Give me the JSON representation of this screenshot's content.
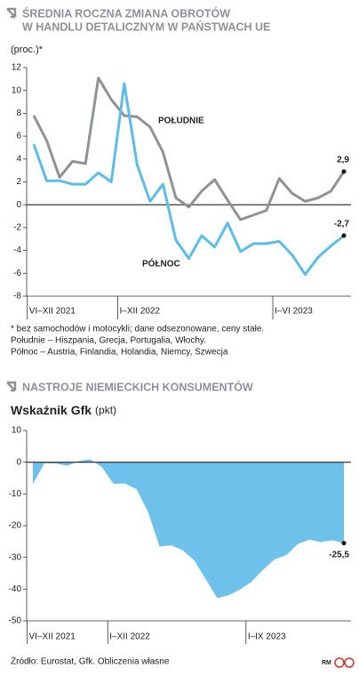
{
  "chart_data": [
    {
      "type": "line",
      "title": [
        "ŚREDNIA ROCZNA ZMIANA OBROTÓW",
        "W HANDLU DETALICZNYM W PAŃSTWACH UE"
      ],
      "subtitle": "(proc.)*",
      "categories": [
        "VI–XII 2021",
        null,
        null,
        null,
        null,
        null,
        null,
        "I–XII 2022",
        null,
        null,
        null,
        null,
        null,
        null,
        null,
        null,
        null,
        null,
        null,
        "I–VI 2023",
        null,
        null,
        null,
        null,
        null
      ],
      "series": [
        {
          "name": "POŁUDNIE",
          "color": "#8f9296",
          "values": [
            7.8,
            5.6,
            2.4,
            3.8,
            3.6,
            11.1,
            9.2,
            7.8,
            7.7,
            6.8,
            4.6,
            0.6,
            -0.2,
            1.2,
            2.2,
            0.4,
            -1.3,
            -0.9,
            -0.5,
            2.3,
            1.0,
            0.3,
            0.6,
            1.2,
            2.9
          ],
          "value_labels": [
            null,
            null,
            null,
            null,
            null,
            null,
            null,
            null,
            null,
            null,
            null,
            null,
            null,
            null,
            null,
            null,
            null,
            null,
            null,
            null,
            null,
            null,
            null,
            null,
            "2,9"
          ]
        },
        {
          "name": "PÓŁNOC",
          "color": "#5bbde8",
          "values": [
            5.3,
            2.1,
            2.1,
            1.8,
            1.8,
            2.8,
            2.0,
            10.6,
            3.5,
            0.3,
            1.8,
            -3.1,
            -4.7,
            -2.7,
            -3.7,
            -1.6,
            -4.1,
            -3.4,
            -3.4,
            -3.2,
            -4.4,
            -6.1,
            -4.6,
            -3.6,
            -2.7
          ],
          "value_labels": [
            null,
            null,
            null,
            null,
            null,
            null,
            null,
            null,
            null,
            null,
            null,
            null,
            null,
            null,
            null,
            null,
            null,
            null,
            null,
            null,
            null,
            null,
            null,
            null,
            "-2,7"
          ]
        }
      ],
      "ylim": [
        -8,
        12
      ],
      "yticks": [
        12,
        10,
        8,
        6,
        4,
        2,
        0,
        -2,
        -4,
        -6,
        -8
      ],
      "grid": false,
      "notes": [
        "* bez samochodów i motocykli; dane odsezonowane, ceny stałe.",
        "Południe – Hiszpania, Grecja, Portugalia, Włochy.",
        "Północ – Austria, Finlandia, Holandia, Niemcy, Szwecja"
      ]
    },
    {
      "type": "area",
      "title": [
        "NASTROJE NIEMIECKICH KONSUMENTÓW"
      ],
      "subtitle": "Wskaźnik Gfk",
      "unit": "(pkt)",
      "categories": [
        "VI–XII 2021",
        null,
        null,
        null,
        null,
        null,
        null,
        "I–XII 2022",
        null,
        null,
        null,
        null,
        null,
        null,
        null,
        null,
        null,
        null,
        null,
        "I–IX 2023",
        null,
        null,
        null,
        null,
        null,
        null,
        null,
        null
      ],
      "series": [
        {
          "name": "Wskaźnik Gfk",
          "color": "#6ec1ea",
          "values": [
            -6.9,
            -0.3,
            -0.4,
            -1.1,
            0.4,
            0.9,
            -1.6,
            -6.8,
            -6.7,
            -8.5,
            -15.7,
            -26.6,
            -26.2,
            -27.7,
            -30.9,
            -36.8,
            -42.8,
            -41.9,
            -40.1,
            -37.6,
            -33.8,
            -30.6,
            -29.3,
            -25.8,
            -24.4,
            -25.2,
            -24.6,
            -25.5
          ],
          "value_labels": [
            null,
            null,
            null,
            null,
            null,
            null,
            null,
            null,
            null,
            null,
            null,
            null,
            null,
            null,
            null,
            null,
            null,
            null,
            null,
            null,
            null,
            null,
            null,
            null,
            null,
            null,
            null,
            "-25,5"
          ]
        }
      ],
      "ylim": [
        -50,
        10
      ],
      "yticks": [
        10,
        0,
        -10,
        -20,
        -30,
        -40,
        -50
      ],
      "grid": false
    }
  ],
  "source": "Źródło: Eurostat, Gfk. Obliczenia własne",
  "credit": "RM"
}
